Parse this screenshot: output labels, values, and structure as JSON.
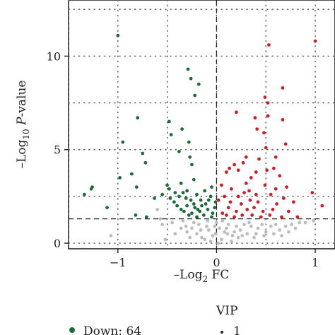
{
  "chart_data": {
    "type": "scatter",
    "title": "",
    "xlabel": "–Log2 FC",
    "ylabel": "–Log10 P-value",
    "xlim": [
      -1.5,
      1.2
    ],
    "ylim": [
      -0.3,
      13
    ],
    "xticks": [
      -1,
      0,
      1
    ],
    "yticks": [
      0,
      5,
      10
    ],
    "grid": "dotted",
    "thresholds": {
      "x": 0,
      "y": 1.3
    },
    "colors": {
      "down": "#1e6b3a",
      "up": "#c8202a",
      "ns": "#bdbdbd"
    },
    "legend": {
      "group_entries": [
        {
          "label": "Down: 64",
          "color": "#1e6b3a"
        }
      ],
      "size_title": "VIP",
      "size_entries": [
        {
          "label": "1"
        }
      ]
    },
    "series": [
      {
        "group": "down",
        "points": [
          [
            -1.0,
            11.1
          ],
          [
            -0.29,
            9.3
          ],
          [
            -0.26,
            8.8
          ],
          [
            -0.22,
            7.9
          ],
          [
            -0.18,
            8.5
          ],
          [
            -0.8,
            6.7
          ],
          [
            -0.48,
            6.5
          ],
          [
            -0.35,
            6.1
          ],
          [
            -0.46,
            5.8
          ],
          [
            -0.28,
            5.4
          ],
          [
            -0.95,
            5.4
          ],
          [
            -0.75,
            4.8
          ],
          [
            -0.72,
            4.3
          ],
          [
            -0.38,
            4.9
          ],
          [
            -0.27,
            4.6
          ],
          [
            -0.25,
            4.2
          ],
          [
            -0.86,
            3.7
          ],
          [
            -0.98,
            3.5
          ],
          [
            -0.23,
            3.4
          ],
          [
            -0.36,
            3.2
          ],
          [
            -1.26,
            3.0
          ],
          [
            -0.81,
            3.0
          ],
          [
            -0.5,
            3.1
          ],
          [
            -0.05,
            3.0
          ],
          [
            -0.48,
            2.9
          ],
          [
            -0.42,
            2.7
          ],
          [
            -0.34,
            2.7
          ],
          [
            -0.3,
            2.8
          ],
          [
            -0.2,
            2.6
          ],
          [
            -0.12,
            2.8
          ],
          [
            -1.27,
            2.9
          ],
          [
            -1.34,
            2.6
          ],
          [
            -0.63,
            2.4
          ],
          [
            -0.38,
            2.5
          ],
          [
            -0.26,
            2.3
          ],
          [
            -0.16,
            2.3
          ],
          [
            -0.06,
            2.5
          ],
          [
            -0.43,
            2.2
          ],
          [
            -0.3,
            2.0
          ],
          [
            -0.22,
            1.9
          ],
          [
            -0.11,
            2.1
          ],
          [
            -0.01,
            2.2
          ],
          [
            -1.11,
            1.9
          ],
          [
            -0.36,
            1.8
          ],
          [
            -0.17,
            1.7
          ],
          [
            -0.09,
            1.8
          ],
          [
            -0.04,
            1.6
          ],
          [
            -0.25,
            1.6
          ],
          [
            -0.13,
            1.5
          ],
          [
            -0.82,
            1.5
          ],
          [
            -0.71,
            1.4
          ],
          [
            -0.28,
            1.5
          ],
          [
            -0.2,
            1.4
          ],
          [
            -0.05,
            1.4
          ],
          [
            -0.4,
            2.0
          ],
          [
            -0.33,
            1.7
          ],
          [
            -0.15,
            2.0
          ],
          [
            -0.08,
            2.3
          ],
          [
            -0.23,
            2.1
          ],
          [
            -0.02,
            1.9
          ],
          [
            -0.55,
            2.6
          ],
          [
            -0.47,
            2.4
          ],
          [
            -0.31,
            2.4
          ],
          [
            -0.19,
            1.8
          ]
        ]
      },
      {
        "group": "up",
        "points": [
          [
            1.0,
            10.8
          ],
          [
            0.53,
            10.6
          ],
          [
            0.67,
            8.3
          ],
          [
            0.49,
            7.8
          ],
          [
            0.52,
            7.5
          ],
          [
            0.2,
            7.0
          ],
          [
            0.52,
            6.8
          ],
          [
            0.39,
            6.7
          ],
          [
            0.67,
            6.6
          ],
          [
            0.41,
            6.1
          ],
          [
            0.48,
            5.9
          ],
          [
            0.7,
            5.3
          ],
          [
            0.5,
            5.1
          ],
          [
            0.3,
            4.6
          ],
          [
            0.43,
            4.5
          ],
          [
            0.6,
            4.6
          ],
          [
            0.18,
            4.2
          ],
          [
            0.27,
            4.3
          ],
          [
            0.58,
            4.0
          ],
          [
            0.1,
            3.8
          ],
          [
            0.13,
            4.0
          ],
          [
            0.22,
            3.9
          ],
          [
            0.4,
            3.8
          ],
          [
            0.51,
            3.9
          ],
          [
            0.35,
            3.5
          ],
          [
            0.64,
            3.6
          ],
          [
            0.05,
            3.1
          ],
          [
            0.3,
            3.2
          ],
          [
            0.49,
            3.1
          ],
          [
            0.71,
            3.0
          ],
          [
            0.15,
            2.9
          ],
          [
            0.08,
            2.5
          ],
          [
            0.22,
            2.5
          ],
          [
            0.28,
            2.7
          ],
          [
            0.4,
            2.6
          ],
          [
            0.55,
            2.6
          ],
          [
            0.68,
            2.4
          ],
          [
            0.02,
            2.3
          ],
          [
            0.14,
            2.2
          ],
          [
            0.25,
            2.1
          ],
          [
            0.34,
            2.3
          ],
          [
            0.42,
            2.2
          ],
          [
            0.61,
            2.1
          ],
          [
            0.78,
            2.2
          ],
          [
            0.97,
            2.7
          ],
          [
            0.12,
            1.9
          ],
          [
            0.2,
            1.7
          ],
          [
            0.31,
            1.8
          ],
          [
            0.38,
            1.9
          ],
          [
            0.47,
            1.7
          ],
          [
            0.57,
            1.8
          ],
          [
            0.73,
            1.7
          ],
          [
            1.07,
            2.0
          ],
          [
            0.06,
            1.6
          ],
          [
            0.26,
            1.5
          ],
          [
            0.36,
            1.5
          ],
          [
            0.45,
            1.4
          ],
          [
            0.54,
            1.5
          ],
          [
            0.66,
            1.4
          ],
          [
            0.18,
            1.4
          ],
          [
            0.1,
            1.5
          ],
          [
            0.82,
            1.4
          ],
          [
            0.6,
            2.9
          ],
          [
            0.33,
            2.8
          ]
        ]
      },
      {
        "group": "ns",
        "points": [
          [
            -1.07,
            0.4
          ],
          [
            -0.52,
            0.2
          ],
          [
            -0.45,
            1.1
          ],
          [
            -0.55,
            1.0
          ],
          [
            -0.31,
            0.9
          ],
          [
            -0.18,
            1.0
          ],
          [
            -0.25,
            0.8
          ],
          [
            -0.1,
            0.9
          ],
          [
            -0.3,
            0.6
          ],
          [
            -0.2,
            0.5
          ],
          [
            -0.08,
            0.7
          ],
          [
            -0.15,
            0.3
          ],
          [
            -0.04,
            0.4
          ],
          [
            -0.12,
            0.2
          ],
          [
            -0.02,
            0.9
          ],
          [
            0.03,
            0.8
          ],
          [
            0.08,
            0.6
          ],
          [
            0.12,
            1.0
          ],
          [
            0.16,
            0.4
          ],
          [
            0.2,
            0.9
          ],
          [
            0.24,
            0.7
          ],
          [
            0.28,
            1.0
          ],
          [
            0.31,
            0.5
          ],
          [
            0.35,
            0.9
          ],
          [
            0.38,
            0.3
          ],
          [
            0.42,
            0.8
          ],
          [
            0.46,
            1.0
          ],
          [
            0.5,
            0.6
          ],
          [
            0.55,
            0.9
          ],
          [
            0.6,
            1.0
          ],
          [
            0.64,
            0.7
          ],
          [
            0.7,
            0.9
          ],
          [
            0.76,
            1.0
          ],
          [
            0.84,
            1.1
          ],
          [
            0.9,
            1.1
          ],
          [
            0.98,
            1.2
          ],
          [
            -0.06,
            0.1
          ],
          [
            0.05,
            0.2
          ],
          [
            0.15,
            0.1
          ],
          [
            0.22,
            0.3
          ],
          [
            -0.23,
            1.1
          ],
          [
            -0.36,
            0.8
          ],
          [
            -0.42,
            0.5
          ],
          [
            0.0,
            1.1
          ],
          [
            0.06,
            1.2
          ],
          [
            0.11,
            0.5
          ],
          [
            0.18,
            0.6
          ],
          [
            0.26,
            0.4
          ],
          [
            0.33,
            1.1
          ],
          [
            0.4,
            0.5
          ],
          [
            0.48,
            0.4
          ],
          [
            0.58,
            0.5
          ],
          [
            0.66,
            0.4
          ],
          [
            -0.27,
            0.3
          ],
          [
            -0.16,
            0.7
          ],
          [
            -0.01,
            0.5
          ],
          [
            0.02,
            0.0
          ],
          [
            0.1,
            0.8
          ],
          [
            -0.09,
            1.2
          ],
          [
            -0.34,
            1.2
          ],
          [
            -0.6,
            1.8
          ],
          [
            -0.57,
            1.3
          ],
          [
            0.73,
            0.6
          ],
          [
            0.8,
            0.8
          ]
        ]
      }
    ]
  }
}
